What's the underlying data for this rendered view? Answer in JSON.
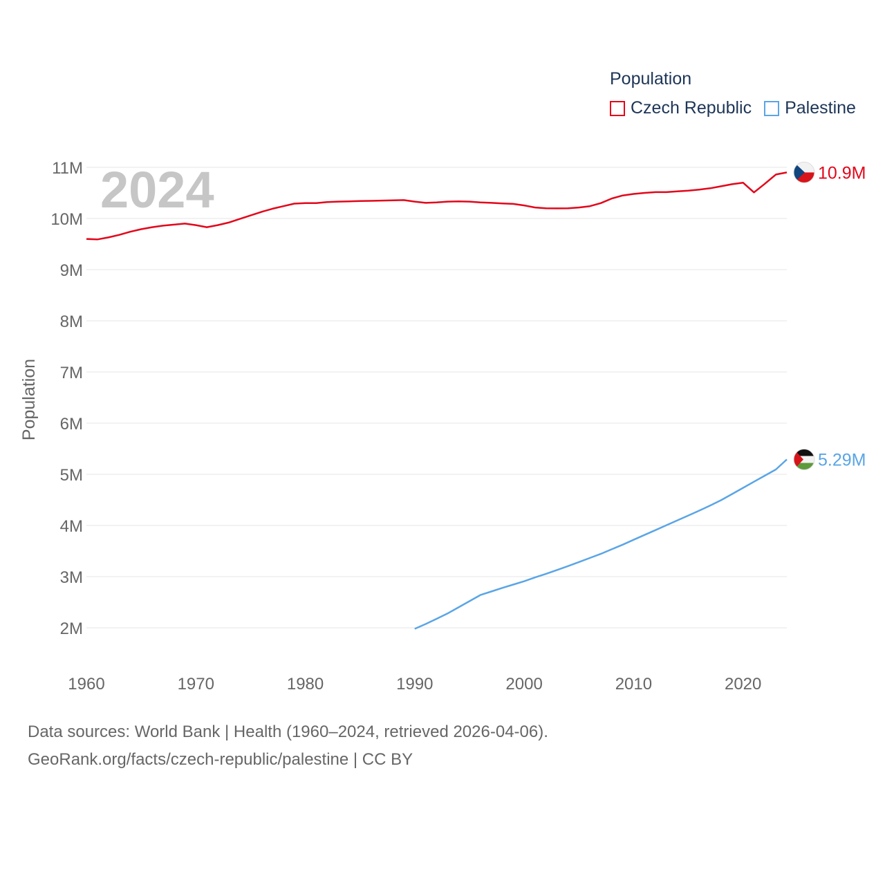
{
  "legend": {
    "title": "Population",
    "items": [
      {
        "name": "Czech Republic",
        "color": "#e3061a"
      },
      {
        "name": "Palestine",
        "color": "#5aa5e6"
      }
    ]
  },
  "year_watermark": "2024",
  "footer": {
    "line1": "Data sources: World Bank | Health (1960–2024, retrieved 2026-04-06).",
    "line2": "GeoRank.org/facts/czech-republic/palestine | CC BY"
  },
  "chart_data": {
    "type": "line",
    "title": "Population",
    "xlabel": "",
    "ylabel": "Population",
    "xlim": [
      1960,
      2024
    ],
    "ylim": [
      1500000,
      11000000
    ],
    "x_ticks": [
      1960,
      1970,
      1980,
      1990,
      2000,
      2010,
      2020
    ],
    "x_tick_labels": [
      "1960",
      "1970",
      "1980",
      "1990",
      "2000",
      "2010",
      "2020"
    ],
    "y_ticks": [
      2000000,
      3000000,
      4000000,
      5000000,
      6000000,
      7000000,
      8000000,
      9000000,
      10000000,
      11000000
    ],
    "y_tick_labels": [
      "2M",
      "3M",
      "4M",
      "5M",
      "6M",
      "7M",
      "8M",
      "9M",
      "10M",
      "11M"
    ],
    "grid": true,
    "legend_position": "top-right",
    "series": [
      {
        "name": "Czech Republic",
        "color": "#e3061a",
        "end_label": "10.9M",
        "flag": "czech",
        "x": [
          1960,
          1961,
          1962,
          1963,
          1964,
          1965,
          1966,
          1967,
          1968,
          1969,
          1970,
          1971,
          1972,
          1973,
          1974,
          1975,
          1976,
          1977,
          1978,
          1979,
          1980,
          1981,
          1982,
          1983,
          1984,
          1985,
          1986,
          1987,
          1988,
          1989,
          1990,
          1991,
          1992,
          1993,
          1994,
          1995,
          1996,
          1997,
          1998,
          1999,
          2000,
          2001,
          2002,
          2003,
          2004,
          2005,
          2006,
          2007,
          2008,
          2009,
          2010,
          2011,
          2012,
          2013,
          2014,
          2015,
          2016,
          2017,
          2018,
          2019,
          2020,
          2021,
          2022,
          2023,
          2024
        ],
        "values": [
          9600000,
          9590000,
          9630000,
          9680000,
          9740000,
          9790000,
          9830000,
          9860000,
          9880000,
          9900000,
          9870000,
          9830000,
          9870000,
          9920000,
          9990000,
          10060000,
          10130000,
          10190000,
          10240000,
          10290000,
          10300000,
          10300000,
          10320000,
          10330000,
          10335000,
          10340000,
          10345000,
          10350000,
          10355000,
          10360000,
          10330000,
          10305000,
          10315000,
          10330000,
          10335000,
          10330000,
          10315000,
          10305000,
          10295000,
          10285000,
          10255000,
          10215000,
          10198000,
          10197000,
          10200000,
          10215000,
          10240000,
          10300000,
          10390000,
          10450000,
          10480000,
          10500000,
          10515000,
          10515000,
          10530000,
          10545000,
          10565000,
          10590000,
          10630000,
          10670000,
          10700000,
          10510000,
          10680000,
          10860000,
          10900000
        ]
      },
      {
        "name": "Palestine",
        "color": "#5aa5e6",
        "end_label": "5.29M",
        "flag": "palestine",
        "x": [
          1990,
          1991,
          1992,
          1993,
          1994,
          1995,
          1996,
          1997,
          1998,
          1999,
          2000,
          2001,
          2002,
          2003,
          2004,
          2005,
          2006,
          2007,
          2008,
          2009,
          2010,
          2011,
          2012,
          2013,
          2014,
          2015,
          2016,
          2017,
          2018,
          2019,
          2020,
          2021,
          2022,
          2023,
          2024
        ],
        "values": [
          1980000,
          2075000,
          2175000,
          2280000,
          2400000,
          2520000,
          2640000,
          2710000,
          2780000,
          2845000,
          2910000,
          2985000,
          3055000,
          3130000,
          3205000,
          3285000,
          3365000,
          3445000,
          3535000,
          3625000,
          3720000,
          3815000,
          3910000,
          4005000,
          4100000,
          4195000,
          4290000,
          4390000,
          4495000,
          4615000,
          4735000,
          4855000,
          4975000,
          5095000,
          5290000
        ]
      }
    ]
  }
}
